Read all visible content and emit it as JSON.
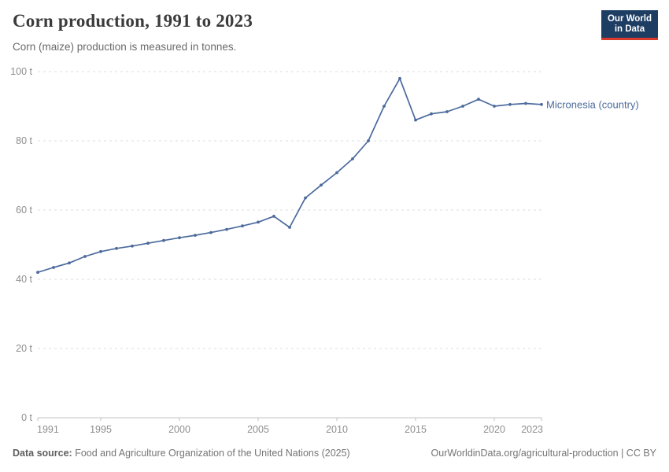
{
  "header": {
    "title": "Corn production, 1991 to 2023",
    "subtitle": "Corn (maize) production is measured in tonnes.",
    "logo": {
      "line1": "Our World",
      "line2": "in Data",
      "bg_color": "#1d3d63",
      "accent_color": "#d93a2b"
    }
  },
  "chart_data": {
    "type": "line",
    "title": "Corn production, 1991 to 2023",
    "subtitle": "Corn (maize) production is measured in tonnes.",
    "unit": "tonnes",
    "xlabel": "",
    "ylabel": "",
    "xlim": [
      1991,
      2023
    ],
    "ylim": [
      0,
      100
    ],
    "grid": "horizontal-dashed",
    "legend_position": "right-of-line-end",
    "yticks": [
      0,
      20,
      40,
      60,
      80,
      100
    ],
    "ytick_suffix": " t",
    "xticks": [
      1991,
      1995,
      2000,
      2005,
      2010,
      2015,
      2020,
      2023
    ],
    "x": [
      1991,
      1992,
      1993,
      1994,
      1995,
      1996,
      1997,
      1998,
      1999,
      2000,
      2001,
      2002,
      2003,
      2004,
      2005,
      2006,
      2007,
      2008,
      2009,
      2010,
      2011,
      2012,
      2013,
      2014,
      2015,
      2016,
      2017,
      2018,
      2019,
      2020,
      2021,
      2022,
      2023
    ],
    "series": [
      {
        "name": "Micronesia (country)",
        "color": "#4c6a9c",
        "values": [
          42,
          43.4,
          44.7,
          46.6,
          48,
          48.9,
          49.6,
          50.4,
          51.2,
          52,
          52.7,
          53.5,
          54.4,
          55.4,
          56.5,
          58.2,
          55,
          63.5,
          67.2,
          70.8,
          74.8,
          80,
          90,
          98,
          86,
          87.8,
          88.4,
          90,
          92,
          90,
          90.5,
          90.8,
          90.5
        ]
      }
    ]
  },
  "axis_colors": {
    "gridline": "#dedede",
    "axis_line": "#c0c0c0",
    "tick_text": "#8e8e8e"
  },
  "footer": {
    "datasource_label": "Data source:",
    "datasource_text": " Food and Agriculture Organization of the United Nations (2025)",
    "link_text": "OurWorldinData.org/agricultural-production | CC BY"
  }
}
